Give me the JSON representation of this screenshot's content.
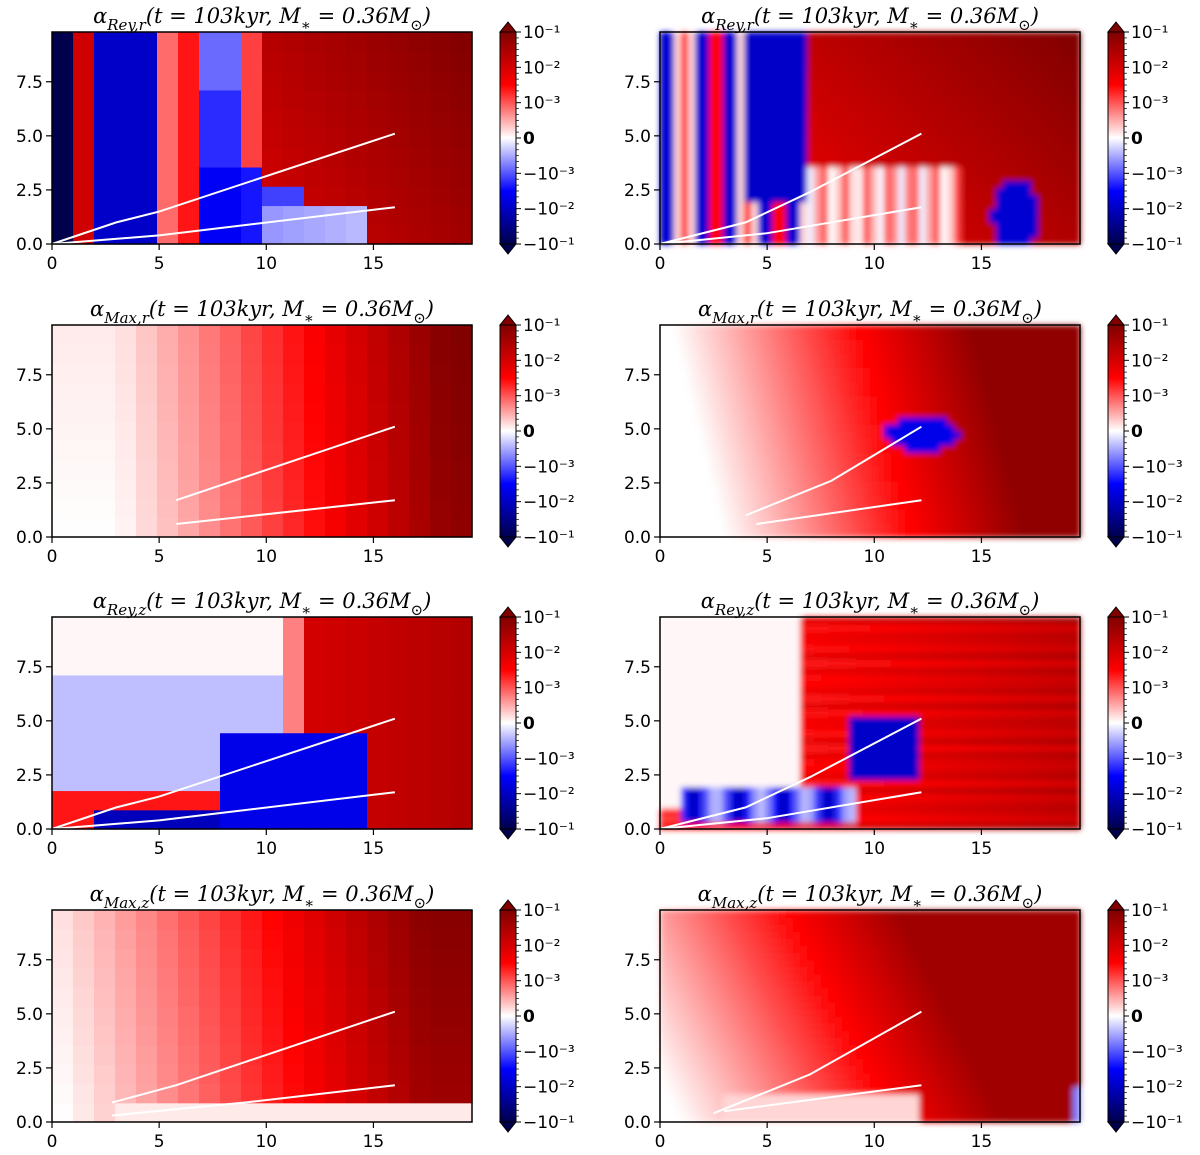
{
  "figure": {
    "colormap": {
      "name": "seismic",
      "neg_dark": "#00004c",
      "neg": "#0000ff",
      "zero": "#ffffff",
      "pos": "#ff0000",
      "pos_dark": "#800000"
    }
  },
  "chart_data": [
    {
      "type": "heatmap",
      "variant": "grid",
      "title": "αRey,r(t = 103kyr, M∗ = 0.36M⊙)",
      "title_parts": {
        "symbol": "α",
        "sub": "Rey,r",
        "args": "(t = 103kyr, M",
        "sub2": "∗",
        "mid": " = 0.36M",
        "sub3": "⊙",
        "end": ")"
      },
      "xlim": [
        0,
        19.6
      ],
      "ylim": [
        0,
        9.8
      ],
      "xticks": [
        "0",
        "5",
        "10",
        "15"
      ],
      "yticks": [
        "0.0",
        "2.5",
        "5.0",
        "7.5"
      ],
      "colorbar": {
        "ticks": [
          "10⁻¹",
          "10⁻²",
          "10⁻³",
          "0",
          "−10⁻³",
          "−10⁻²",
          "−10⁻¹"
        ]
      },
      "lines": [
        {
          "x": [
            0,
            3,
            5,
            16
          ],
          "y": [
            0,
            1.0,
            1.5,
            5.1
          ]
        },
        {
          "x": [
            0,
            5,
            16
          ],
          "y": [
            0,
            0.4,
            1.7
          ]
        }
      ]
    },
    {
      "type": "heatmap",
      "variant": "smooth",
      "title": "αRey,r(t = 103kyr, M∗ = 0.36M⊙)",
      "title_parts": {
        "symbol": "α",
        "sub": "Rey,r",
        "args": "(t = 103kyr, M",
        "sub2": "∗",
        "mid": " = 0.36M",
        "sub3": "⊙",
        "end": ")"
      },
      "xlim": [
        0,
        19.6
      ],
      "ylim": [
        0,
        9.8
      ],
      "xticks": [
        "0",
        "5",
        "10",
        "15"
      ],
      "yticks": [
        "0.0",
        "2.5",
        "5.0",
        "7.5"
      ],
      "colorbar": {
        "ticks": [
          "10⁻¹",
          "10⁻²",
          "10⁻³",
          "0",
          "−10⁻³",
          "−10⁻²",
          "−10⁻¹"
        ]
      },
      "lines": [
        {
          "x": [
            0,
            4,
            7,
            12.2
          ],
          "y": [
            0,
            1.0,
            2.4,
            5.1
          ]
        },
        {
          "x": [
            0,
            5,
            12.2
          ],
          "y": [
            0,
            0.5,
            1.7
          ]
        }
      ]
    },
    {
      "type": "heatmap",
      "variant": "grid",
      "title": "αMax,r(t = 103kyr, M∗ = 0.36M⊙)",
      "title_parts": {
        "symbol": "α",
        "sub": "Max,r",
        "args": "(t = 103kyr, M",
        "sub2": "∗",
        "mid": " = 0.36M",
        "sub3": "⊙",
        "end": ")"
      },
      "xlim": [
        0,
        19.6
      ],
      "ylim": [
        0,
        9.8
      ],
      "xticks": [
        "0",
        "5",
        "10",
        "15"
      ],
      "yticks": [
        "0.0",
        "2.5",
        "5.0",
        "7.5"
      ],
      "colorbar": {
        "ticks": [
          "10⁻¹",
          "10⁻²",
          "10⁻³",
          "0",
          "−10⁻³",
          "−10⁻²",
          "−10⁻¹"
        ]
      },
      "lines": [
        {
          "x": [
            5.8,
            16
          ],
          "y": [
            1.7,
            5.1
          ]
        },
        {
          "x": [
            5.8,
            16
          ],
          "y": [
            0.6,
            1.7
          ]
        }
      ]
    },
    {
      "type": "heatmap",
      "variant": "smooth",
      "title": "αMax,r(t = 103kyr, M∗ = 0.36M⊙)",
      "title_parts": {
        "symbol": "α",
        "sub": "Max,r",
        "args": "(t = 103kyr, M",
        "sub2": "∗",
        "mid": " = 0.36M",
        "sub3": "⊙",
        "end": ")"
      },
      "xlim": [
        0,
        19.6
      ],
      "ylim": [
        0,
        9.8
      ],
      "xticks": [
        "0",
        "5",
        "10",
        "15"
      ],
      "yticks": [
        "0.0",
        "2.5",
        "5.0",
        "7.5"
      ],
      "colorbar": {
        "ticks": [
          "10⁻¹",
          "10⁻²",
          "10⁻³",
          "0",
          "−10⁻³",
          "−10⁻²",
          "−10⁻¹"
        ]
      },
      "lines": [
        {
          "x": [
            4,
            8,
            12.2
          ],
          "y": [
            1.0,
            2.6,
            5.1
          ]
        },
        {
          "x": [
            4.5,
            12.2
          ],
          "y": [
            0.6,
            1.7
          ]
        }
      ]
    },
    {
      "type": "heatmap",
      "variant": "grid",
      "title": "αRey,z(t = 103kyr, M∗ = 0.36M⊙)",
      "title_parts": {
        "symbol": "α",
        "sub": "Rey,z",
        "args": "(t = 103kyr, M",
        "sub2": "∗",
        "mid": " = 0.36M",
        "sub3": "⊙",
        "end": ")"
      },
      "xlim": [
        0,
        19.6
      ],
      "ylim": [
        0,
        9.8
      ],
      "xticks": [
        "0",
        "5",
        "10",
        "15"
      ],
      "yticks": [
        "0.0",
        "2.5",
        "5.0",
        "7.5"
      ],
      "colorbar": {
        "ticks": [
          "10⁻¹",
          "10⁻²",
          "10⁻³",
          "0",
          "−10⁻³",
          "−10⁻²",
          "−10⁻¹"
        ]
      },
      "lines": [
        {
          "x": [
            0,
            3,
            5,
            16
          ],
          "y": [
            0,
            1.0,
            1.5,
            5.1
          ]
        },
        {
          "x": [
            0,
            5,
            16
          ],
          "y": [
            0,
            0.4,
            1.7
          ]
        }
      ]
    },
    {
      "type": "heatmap",
      "variant": "smooth",
      "title": "αRey,z(t = 103kyr, M∗ = 0.36M⊙)",
      "title_parts": {
        "symbol": "α",
        "sub": "Rey,z",
        "args": "(t = 103kyr, M",
        "sub2": "∗",
        "mid": " = 0.36M",
        "sub3": "⊙",
        "end": ")"
      },
      "xlim": [
        0,
        19.6
      ],
      "ylim": [
        0,
        9.8
      ],
      "xticks": [
        "0",
        "5",
        "10",
        "15"
      ],
      "yticks": [
        "0.0",
        "2.5",
        "5.0",
        "7.5"
      ],
      "colorbar": {
        "ticks": [
          "10⁻¹",
          "10⁻²",
          "10⁻³",
          "0",
          "−10⁻³",
          "−10⁻²",
          "−10⁻¹"
        ]
      },
      "lines": [
        {
          "x": [
            0,
            4,
            7,
            12.2
          ],
          "y": [
            0,
            1.0,
            2.4,
            5.1
          ]
        },
        {
          "x": [
            0,
            5,
            12.2
          ],
          "y": [
            0,
            0.5,
            1.7
          ]
        }
      ]
    },
    {
      "type": "heatmap",
      "variant": "grid",
      "title": "αMax,z(t = 103kyr, M∗ = 0.36M⊙)",
      "title_parts": {
        "symbol": "α",
        "sub": "Max,z",
        "args": "(t = 103kyr, M",
        "sub2": "∗",
        "mid": " = 0.36M",
        "sub3": "⊙",
        "end": ")"
      },
      "xlim": [
        0,
        19.6
      ],
      "ylim": [
        0,
        9.8
      ],
      "xticks": [
        "0",
        "5",
        "10",
        "15"
      ],
      "yticks": [
        "0.0",
        "2.5",
        "5.0",
        "7.5"
      ],
      "colorbar": {
        "ticks": [
          "10⁻¹",
          "10⁻²",
          "10⁻³",
          "0",
          "−10⁻³",
          "−10⁻²",
          "−10⁻¹"
        ]
      },
      "lines": [
        {
          "x": [
            2.8,
            5.8,
            16
          ],
          "y": [
            0.9,
            1.7,
            5.1
          ]
        },
        {
          "x": [
            2.8,
            9,
            16
          ],
          "y": [
            0.3,
            0.9,
            1.7
          ]
        }
      ]
    },
    {
      "type": "heatmap",
      "variant": "smooth",
      "title": "αMax,z(t = 103kyr, M∗ = 0.36M⊙)",
      "title_parts": {
        "symbol": "α",
        "sub": "Max,z",
        "args": "(t = 103kyr, M",
        "sub2": "∗",
        "mid": " = 0.36M",
        "sub3": "⊙",
        "end": ")"
      },
      "xlim": [
        0,
        19.6
      ],
      "ylim": [
        0,
        9.8
      ],
      "xticks": [
        "0",
        "5",
        "10",
        "15"
      ],
      "yticks": [
        "0.0",
        "2.5",
        "5.0",
        "7.5"
      ],
      "colorbar": {
        "ticks": [
          "10⁻¹",
          "10⁻²",
          "10⁻³",
          "0",
          "−10⁻³",
          "−10⁻²",
          "−10⁻¹"
        ]
      },
      "lines": [
        {
          "x": [
            2.5,
            7,
            12.2
          ],
          "y": [
            0.4,
            2.2,
            5.1
          ]
        },
        {
          "x": [
            3,
            12.2
          ],
          "y": [
            0.5,
            1.7
          ]
        }
      ]
    }
  ]
}
